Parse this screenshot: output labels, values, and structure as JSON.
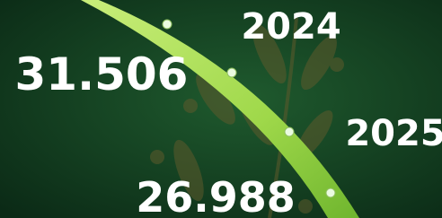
{
  "labels": {
    "year_top": "2024",
    "value_top": "31.506",
    "year_bottom": "2025",
    "value_bottom": "26.988"
  }
}
